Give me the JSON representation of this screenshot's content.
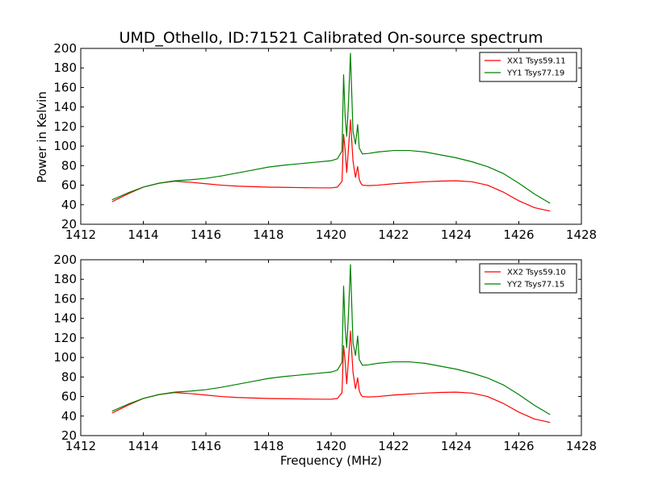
{
  "figure": {
    "title": "UMD_Othello, ID:71521 Calibrated On-source spectrum",
    "ylabel": "Power in Kelvin",
    "xlabel": "Frequency (MHz)"
  },
  "chart_data": [
    {
      "type": "line",
      "title": "UMD_Othello, ID:71521 Calibrated On-source spectrum",
      "xlabel": "",
      "ylabel": "Power in Kelvin",
      "xlim": [
        1412,
        1428
      ],
      "ylim": [
        20,
        200
      ],
      "xticks": [
        1412,
        1414,
        1416,
        1418,
        1420,
        1422,
        1424,
        1426,
        1428
      ],
      "yticks": [
        20,
        40,
        60,
        80,
        100,
        120,
        140,
        160,
        180,
        200
      ],
      "grid": false,
      "legend": "top-right",
      "series": [
        {
          "name": "XX1 Tsys59.11",
          "color": "#ff0000",
          "x": [
            1413.0,
            1413.5,
            1414.0,
            1414.5,
            1415.0,
            1415.5,
            1416.0,
            1416.5,
            1417.0,
            1417.5,
            1418.0,
            1418.5,
            1419.0,
            1419.5,
            1420.0,
            1420.2,
            1420.35,
            1420.4,
            1420.45,
            1420.5,
            1420.55,
            1420.62,
            1420.7,
            1420.78,
            1420.85,
            1420.9,
            1420.95,
            1421.0,
            1421.2,
            1421.5,
            1422.0,
            1422.5,
            1423.0,
            1423.5,
            1424.0,
            1424.5,
            1425.0,
            1425.5,
            1426.0,
            1426.5,
            1427.0
          ],
          "values": [
            43,
            51,
            58,
            62,
            64,
            63,
            61.5,
            60,
            59,
            58.5,
            58,
            57.8,
            57.5,
            57.3,
            57.2,
            58,
            64,
            112,
            96,
            73,
            95,
            127,
            85,
            68,
            79,
            66,
            62,
            60,
            59.5,
            60,
            61.5,
            62.5,
            63.5,
            64.2,
            64.5,
            63.5,
            60,
            53,
            44,
            37,
            33.5
          ]
        },
        {
          "name": "YY1 Tsys77.19",
          "color": "#008000",
          "x": [
            1413.0,
            1413.5,
            1414.0,
            1414.5,
            1415.0,
            1415.5,
            1416.0,
            1416.5,
            1417.0,
            1417.5,
            1418.0,
            1418.5,
            1419.0,
            1419.5,
            1420.0,
            1420.2,
            1420.35,
            1420.4,
            1420.45,
            1420.5,
            1420.55,
            1420.62,
            1420.7,
            1420.78,
            1420.85,
            1420.9,
            1420.95,
            1421.0,
            1421.2,
            1421.5,
            1422.0,
            1422.5,
            1423.0,
            1423.5,
            1424.0,
            1424.5,
            1425.0,
            1425.5,
            1426.0,
            1426.5,
            1427.0
          ],
          "values": [
            45,
            52,
            58,
            62,
            64.5,
            65.5,
            67,
            69.5,
            72.5,
            75.5,
            78.5,
            80.5,
            82,
            83.5,
            85,
            87,
            95,
            173,
            130,
            110,
            140,
            195,
            115,
            102,
            122,
            98,
            95,
            92,
            92.5,
            94,
            95.5,
            95.5,
            94,
            91,
            88,
            84,
            79,
            72,
            62,
            51,
            41.5
          ]
        }
      ]
    },
    {
      "type": "line",
      "title": "",
      "xlabel": "Frequency (MHz)",
      "ylabel": "",
      "xlim": [
        1412,
        1428
      ],
      "ylim": [
        20,
        200
      ],
      "xticks": [
        1412,
        1414,
        1416,
        1418,
        1420,
        1422,
        1424,
        1426,
        1428
      ],
      "yticks": [
        20,
        40,
        60,
        80,
        100,
        120,
        140,
        160,
        180,
        200
      ],
      "grid": false,
      "legend": "top-right",
      "series": [
        {
          "name": "XX2 Tsys59.10",
          "color": "#ff0000",
          "x": [
            1413.0,
            1413.5,
            1414.0,
            1414.5,
            1415.0,
            1415.5,
            1416.0,
            1416.5,
            1417.0,
            1417.5,
            1418.0,
            1418.5,
            1419.0,
            1419.5,
            1420.0,
            1420.2,
            1420.35,
            1420.4,
            1420.45,
            1420.5,
            1420.55,
            1420.62,
            1420.7,
            1420.78,
            1420.85,
            1420.9,
            1420.95,
            1421.0,
            1421.2,
            1421.5,
            1422.0,
            1422.5,
            1423.0,
            1423.5,
            1424.0,
            1424.5,
            1425.0,
            1425.5,
            1426.0,
            1426.5,
            1427.0
          ],
          "values": [
            43,
            51,
            58,
            62,
            64,
            63,
            61.5,
            60,
            59,
            58.5,
            58,
            57.8,
            57.5,
            57.3,
            57.2,
            58,
            64,
            112,
            96,
            73,
            95,
            127,
            85,
            68,
            79,
            66,
            62,
            60,
            59.5,
            60,
            61.5,
            62.5,
            63.5,
            64.2,
            64.5,
            63.5,
            60,
            53,
            44,
            37,
            33.5
          ]
        },
        {
          "name": "YY2 Tsys77.15",
          "color": "#008000",
          "x": [
            1413.0,
            1413.5,
            1414.0,
            1414.5,
            1415.0,
            1415.5,
            1416.0,
            1416.5,
            1417.0,
            1417.5,
            1418.0,
            1418.5,
            1419.0,
            1419.5,
            1420.0,
            1420.2,
            1420.35,
            1420.4,
            1420.45,
            1420.5,
            1420.55,
            1420.62,
            1420.7,
            1420.78,
            1420.85,
            1420.9,
            1420.95,
            1421.0,
            1421.2,
            1421.5,
            1422.0,
            1422.5,
            1423.0,
            1423.5,
            1424.0,
            1424.5,
            1425.0,
            1425.5,
            1426.0,
            1426.5,
            1427.0
          ],
          "values": [
            45,
            52,
            58,
            62,
            64.5,
            65.5,
            67,
            69.5,
            72.5,
            75.5,
            78.5,
            80.5,
            82,
            83.5,
            85,
            87,
            95,
            173,
            130,
            110,
            140,
            195,
            115,
            102,
            122,
            98,
            95,
            92,
            92.5,
            94,
            95.5,
            95.5,
            94,
            91,
            88,
            84,
            79,
            72,
            62,
            51,
            41.5
          ]
        }
      ]
    }
  ]
}
